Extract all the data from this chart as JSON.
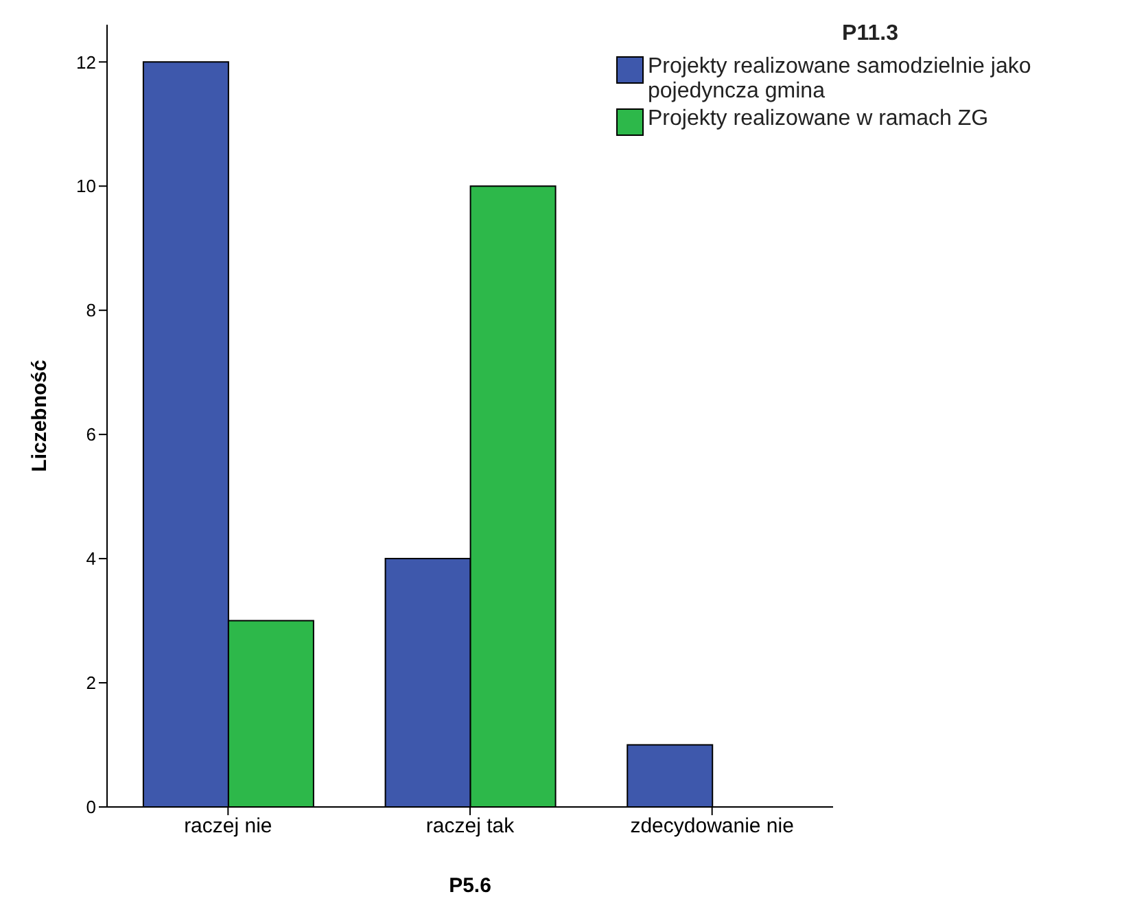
{
  "chart_data": {
    "type": "bar",
    "xlabel": "P5.6",
    "ylabel": "Liczebność",
    "legend_title": "P11.3",
    "categories": [
      "raczej nie",
      "raczej tak",
      "zdecydowanie nie"
    ],
    "series": [
      {
        "name": "Projekty realizowane samodzielnie jako pojedyncza gmina",
        "color": "#3e58ac",
        "values": [
          12,
          4,
          1
        ]
      },
      {
        "name": "Projekty realizowane w ramach ZG",
        "color": "#2db84a",
        "values": [
          3,
          10,
          null
        ]
      }
    ],
    "ylim": [
      0,
      12.6
    ],
    "yticks": [
      0,
      2,
      4,
      6,
      8,
      10,
      12
    ],
    "grid": false,
    "legend": "top right"
  }
}
